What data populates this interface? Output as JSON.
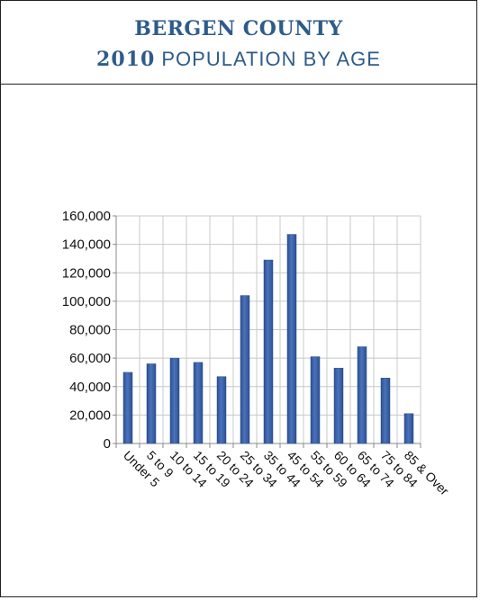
{
  "header": {
    "line1": "BERGEN COUNTY",
    "year": "2010",
    "line2_rest": " POPULATION BY AGE"
  },
  "colors": {
    "title": "#2e5c8a",
    "bar": "#4a73bd",
    "bar_edge": "#2c4f8f",
    "grid": "#c8c8c8"
  },
  "chart_data": {
    "type": "bar",
    "title": "",
    "xlabel": "",
    "ylabel": "",
    "categories": [
      "Under 5",
      "5 to 9",
      "10 to 14",
      "15 to 19",
      "20 to 24",
      "25 to 34",
      "35 to 44",
      "45 to 54",
      "55 to 59",
      "60 to 64",
      "65 to 74",
      "75 to 84",
      "85 & Over"
    ],
    "values": [
      50000,
      56000,
      60000,
      57000,
      47000,
      104000,
      129000,
      147000,
      61000,
      53000,
      68000,
      46000,
      21000
    ],
    "ylim": [
      0,
      160000
    ],
    "yticks": [
      0,
      20000,
      40000,
      60000,
      80000,
      100000,
      120000,
      140000,
      160000
    ],
    "ytick_labels": [
      "0",
      "20,000",
      "40,000",
      "60,000",
      "80,000",
      "100,000",
      "120,000",
      "140,000",
      "160,000"
    ],
    "grid": true,
    "legend": "none"
  }
}
